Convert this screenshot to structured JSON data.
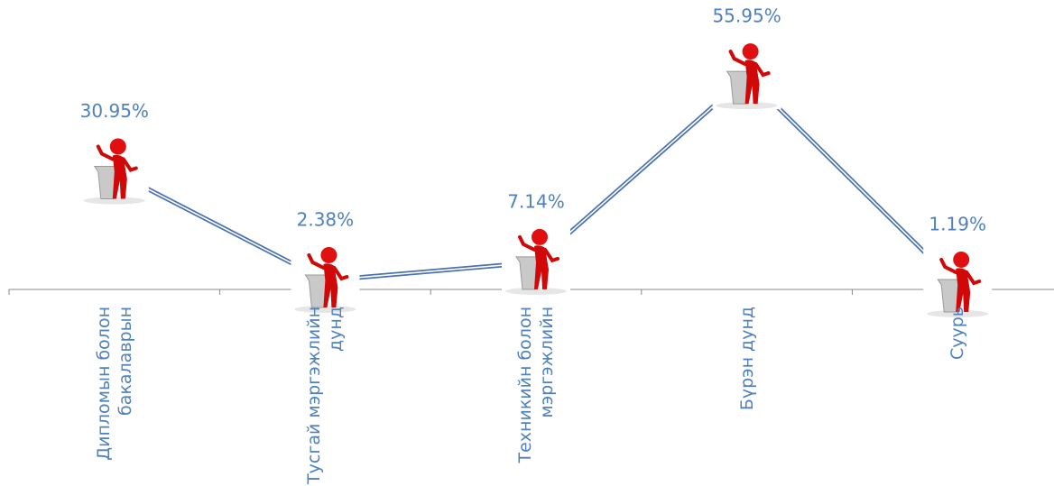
{
  "chart_data": {
    "type": "line",
    "categories": [
      "Дипломын болон бакалаврын",
      "Тусгай мэргэжлийн дунд",
      "Техникийн болон мэргэжлийн",
      "Бүрэн дунд",
      "Суурь"
    ],
    "values": [
      30.95,
      2.38,
      7.14,
      55.95,
      1.19
    ],
    "value_labels": [
      "30.95%",
      "2.38%",
      "7.14%",
      "55.95%",
      "1.19%"
    ],
    "color": "#4a72b0",
    "ylim": [
      0,
      60
    ]
  }
}
